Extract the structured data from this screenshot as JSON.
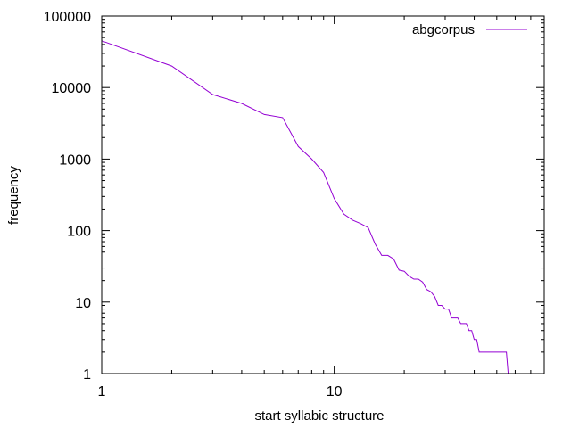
{
  "chart_data": {
    "type": "line",
    "title": "",
    "xlabel": "start syllabic structure",
    "ylabel": "frequency",
    "x_scale": "log",
    "y_scale": "log",
    "xlim": [
      1,
      80
    ],
    "ylim": [
      1,
      100000
    ],
    "x_ticks": [
      {
        "value": 1,
        "label": "1"
      },
      {
        "value": 10,
        "label": "10"
      }
    ],
    "y_ticks": [
      {
        "value": 1,
        "label": "1"
      },
      {
        "value": 10,
        "label": "10"
      },
      {
        "value": 100,
        "label": "100"
      },
      {
        "value": 1000,
        "label": "1000"
      },
      {
        "value": 10000,
        "label": "10000"
      },
      {
        "value": 100000,
        "label": "100000"
      }
    ],
    "grid": false,
    "legend": {
      "position": "top-right"
    },
    "series": [
      {
        "name": "abgcorpus",
        "color": "#9400d3",
        "x": [
          1,
          2,
          3,
          4,
          5,
          6,
          7,
          8,
          9,
          10,
          11,
          12,
          13,
          14,
          15,
          16,
          17,
          18,
          19,
          20,
          21,
          22,
          23,
          24,
          25,
          26,
          27,
          28,
          29,
          30,
          31,
          32,
          33,
          34,
          35,
          36,
          37,
          38,
          39,
          40,
          41,
          42,
          43,
          44,
          45,
          46,
          47,
          48,
          49,
          50,
          51,
          52,
          53,
          54,
          55,
          56
        ],
        "y": [
          45000,
          20000,
          8000,
          6000,
          4200,
          3800,
          1500,
          1000,
          650,
          280,
          170,
          140,
          125,
          110,
          65,
          45,
          45,
          40,
          28,
          27,
          23,
          21,
          21,
          19,
          15,
          14,
          12,
          9,
          9,
          8,
          8,
          6,
          6,
          6,
          5,
          5,
          5,
          4,
          4,
          3,
          3,
          2,
          2,
          2,
          2,
          2,
          2,
          2,
          2,
          2,
          2,
          2,
          2,
          2,
          2,
          1
        ]
      }
    ]
  }
}
